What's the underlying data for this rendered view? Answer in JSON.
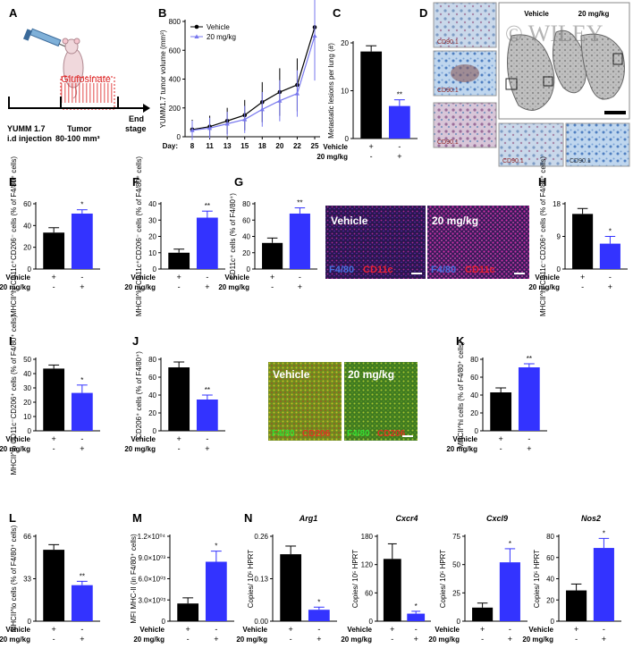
{
  "labels": {
    "vehicle": "Vehicle",
    "dose": "20 mg/kg",
    "plus": "+",
    "minus": "-"
  },
  "panelA": {
    "letter": "A",
    "drug": "Glufosinate",
    "inj_line1": "YUMM 1.7",
    "inj_line2": "i.d injection",
    "tumor_line1": "Tumor",
    "tumor_line2": "80-100 mm³",
    "end_line1": "End",
    "end_line2": "stage"
  },
  "panelD": {
    "letter": "D",
    "top_labels": [
      "Vehicle",
      "20 mg/kg"
    ],
    "stain": "CD90.1"
  },
  "panelG_img": {
    "labels": [
      "Vehicle",
      "20 mg/kg"
    ],
    "stain1": "F4/80",
    "stain2": "CD11c"
  },
  "panelJ_img": {
    "labels": [
      "Vehicle",
      "20 mg/kg"
    ],
    "stain1": "F4/80",
    "stain2": "CD206"
  },
  "watermark": "© WILEY",
  "colors": {
    "vehicle": "#000000",
    "dose": "#3333ff",
    "dose_line": "#7777ee"
  },
  "chart_data": [
    {
      "id": "B",
      "type": "line",
      "title": "",
      "xlabel": "Day:",
      "ylabel": "YUMM1.7 tumor volume (mm³)",
      "x": [
        8,
        11,
        13,
        15,
        18,
        20,
        22,
        25
      ],
      "ylim": [
        0,
        800
      ],
      "yticks": [
        0,
        200,
        400,
        600,
        800
      ],
      "series": [
        {
          "name": "Vehicle",
          "values": [
            50,
            70,
            110,
            150,
            240,
            310,
            360,
            760
          ]
        },
        {
          "name": "20 mg/kg",
          "values": [
            45,
            60,
            90,
            120,
            190,
            250,
            300,
            700
          ]
        }
      ]
    },
    {
      "id": "C",
      "type": "bar",
      "ylabel": "Metastatic lesions per lung (#)",
      "ylim": [
        0,
        20
      ],
      "yticks": [
        0,
        10,
        20
      ],
      "ytick_labels": [
        "0",
        "10",
        "20"
      ],
      "values": [
        18.2,
        6.8
      ],
      "errors": [
        1.2,
        1.3
      ],
      "sig": "**"
    },
    {
      "id": "E",
      "type": "bar",
      "ylabel": "MHCII^hi CD11c⁺CD206⁻ cells (% of F4/80⁺ cells)",
      "ylim": [
        0,
        60
      ],
      "yticks": [
        0,
        20,
        40,
        60
      ],
      "ytick_labels": [
        "0",
        "20",
        "40",
        "60"
      ],
      "values": [
        33.5,
        51
      ],
      "errors": [
        4.5,
        3.5
      ],
      "sig": "*"
    },
    {
      "id": "F",
      "type": "bar",
      "ylabel": "MHCII^lo CD11c⁺CD206⁻ cells (% of F4/80⁺ cells)",
      "ylim": [
        0,
        40
      ],
      "yticks": [
        0,
        10,
        20,
        30,
        40
      ],
      "ytick_labels": [
        "0",
        "10",
        "20",
        "30",
        "40"
      ],
      "values": [
        10,
        31.5
      ],
      "errors": [
        2.2,
        4
      ],
      "sig": "**"
    },
    {
      "id": "G",
      "type": "bar",
      "ylabel": "CD11c⁺ cells (% of F4/80⁺)",
      "ylim": [
        0,
        80
      ],
      "yticks": [
        0,
        20,
        40,
        60,
        80
      ],
      "ytick_labels": [
        "0",
        "20",
        "40",
        "60",
        "80"
      ],
      "values": [
        32,
        68
      ],
      "errors": [
        6,
        7
      ],
      "sig": "**"
    },
    {
      "id": "H",
      "type": "bar",
      "ylabel": "MHCII^hi CD11c⁻CD206⁺ cells (% of F4/80⁺ cells)",
      "ylim": [
        0,
        18
      ],
      "yticks": [
        0,
        9,
        18
      ],
      "ytick_labels": [
        "0",
        "9",
        "18"
      ],
      "values": [
        15.2,
        7
      ],
      "errors": [
        1.5,
        2
      ],
      "sig": "*"
    },
    {
      "id": "I",
      "type": "bar",
      "ylabel": "MHCII^lo CD11c⁻CD206⁺ cells (% of F4/80⁺ cells)",
      "ylim": [
        0,
        50
      ],
      "yticks": [
        0,
        10,
        20,
        30,
        40,
        50
      ],
      "ytick_labels": [
        "0",
        "10",
        "20",
        "30",
        "40",
        "50"
      ],
      "values": [
        43.5,
        26.5
      ],
      "errors": [
        2.5,
        5.5
      ],
      "sig": "*"
    },
    {
      "id": "J",
      "type": "bar",
      "ylabel": "CD206⁺ cells (% of F4/80⁺)",
      "ylim": [
        0,
        80
      ],
      "yticks": [
        0,
        20,
        40,
        60,
        80
      ],
      "ytick_labels": [
        "0",
        "20",
        "40",
        "60",
        "80"
      ],
      "values": [
        71,
        35
      ],
      "errors": [
        6,
        5
      ],
      "sig": "**"
    },
    {
      "id": "K",
      "type": "bar",
      "ylabel": "MHCII^hi cells (% of F4/80⁺ cells)",
      "ylim": [
        0,
        80
      ],
      "yticks": [
        0,
        20,
        40,
        60,
        80
      ],
      "ytick_labels": [
        "0",
        "20",
        "40",
        "60",
        "80"
      ],
      "values": [
        43,
        71
      ],
      "errors": [
        5,
        4
      ],
      "sig": "**"
    },
    {
      "id": "L",
      "type": "bar",
      "ylabel": "MHCII^lo cells (% of F4/80⁺ cells)",
      "ylim": [
        0,
        66
      ],
      "yticks": [
        0,
        33,
        66
      ],
      "ytick_labels": [
        "0",
        "33",
        "66"
      ],
      "values": [
        55.5,
        28
      ],
      "errors": [
        4,
        3
      ],
      "sig": "**"
    },
    {
      "id": "M",
      "type": "bar",
      "ylabel": "MFI MHC-II (in F4/80⁺ cells)",
      "ylim": [
        0,
        12000
      ],
      "yticks": [
        0,
        3000,
        6000,
        9000,
        12000
      ],
      "ytick_labels": [
        "0",
        "3.0×10⁰³",
        "6.0×10⁰³",
        "9.0×10⁰³",
        "1.2×10⁰⁴"
      ],
      "values": [
        2500,
        8400
      ],
      "errors": [
        800,
        1500
      ],
      "sig": "*"
    },
    {
      "id": "N1",
      "type": "bar",
      "title": "Arg1",
      "ylabel": "Copies/ 10⁵ HPRT",
      "ylim": [
        0,
        0.26
      ],
      "yticks": [
        0,
        0.13,
        0.26
      ],
      "ytick_labels": [
        "0.00",
        "0.13",
        "0.26"
      ],
      "values": [
        0.205,
        0.035
      ],
      "errors": [
        0.025,
        0.008
      ],
      "sig": "*"
    },
    {
      "id": "N2",
      "type": "bar",
      "title": "Cxcr4",
      "ylabel": "Copies/ 10⁵ HPRT",
      "ylim": [
        0,
        180
      ],
      "yticks": [
        0,
        60,
        120,
        180
      ],
      "ytick_labels": [
        "0",
        "60",
        "120",
        "180"
      ],
      "values": [
        132,
        16
      ],
      "errors": [
        32,
        5
      ],
      "sig": "*"
    },
    {
      "id": "N3",
      "type": "bar",
      "title": "Cxcl9",
      "ylabel": "Copies/ 10⁵ HPRT",
      "ylim": [
        0,
        75
      ],
      "yticks": [
        0,
        25,
        50,
        75
      ],
      "ytick_labels": [
        "0",
        "25",
        "50",
        "75"
      ],
      "values": [
        12,
        52
      ],
      "errors": [
        4,
        12
      ],
      "sig": "*"
    },
    {
      "id": "N4",
      "type": "bar",
      "title": "Nos2",
      "ylabel": "Copies/ 10⁵ HPRT",
      "ylim": [
        0,
        80
      ],
      "yticks": [
        0,
        20,
        40,
        60,
        80
      ],
      "ytick_labels": [
        "0",
        "20",
        "40",
        "60",
        "80"
      ],
      "values": [
        29,
        69
      ],
      "errors": [
        6,
        9
      ],
      "sig": "*"
    }
  ]
}
